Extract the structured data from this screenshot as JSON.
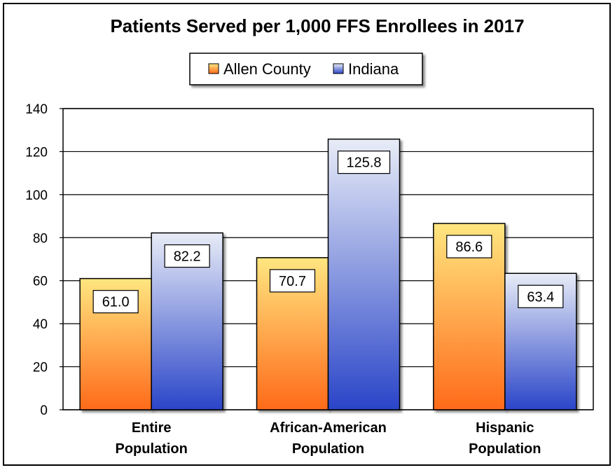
{
  "chart_data": {
    "type": "bar",
    "title": "Patients Served per 1,000 FFS Enrollees in 2017",
    "categories": [
      [
        "Entire",
        "Population"
      ],
      [
        "African-American",
        "Population"
      ],
      [
        "Hispanic",
        "Population"
      ]
    ],
    "series": [
      {
        "name": "Allen County",
        "values": [
          61.0,
          70.7,
          86.6
        ],
        "labels": [
          "61.0",
          "70.7",
          "86.6"
        ],
        "color_top": "#ffe680",
        "color_bottom": "#ff6a1a"
      },
      {
        "name": "Indiana",
        "values": [
          82.2,
          125.8,
          63.4
        ],
        "labels": [
          "82.2",
          "125.8",
          "63.4"
        ],
        "color_top": "#e8ecf7",
        "color_bottom": "#2a45c8"
      }
    ],
    "ylim": [
      0,
      140
    ],
    "yticks": [
      "0",
      "20",
      "40",
      "60",
      "80",
      "100",
      "120",
      "140"
    ],
    "grid": true,
    "legend_position": "top-center"
  }
}
